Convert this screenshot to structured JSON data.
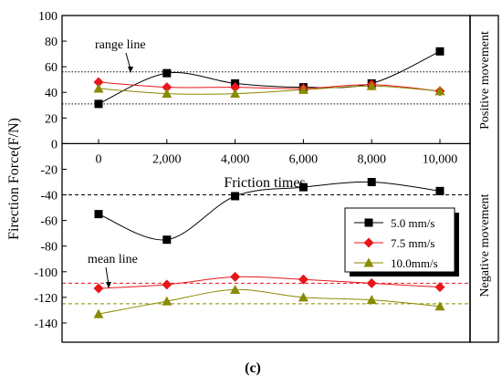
{
  "chart_data": {
    "type": "line",
    "panel_label": "(c)",
    "xlabel": "Friction times",
    "ylabel": "Firection Force(F/N)",
    "x": [
      0,
      2000,
      4000,
      6000,
      8000,
      10000
    ],
    "x_tick_labels": [
      "0",
      "2,000",
      "4,000",
      "6,000",
      "8,000",
      "10,000"
    ],
    "ylim": [
      -155,
      100
    ],
    "y_tick_values": [
      100,
      80,
      60,
      40,
      20,
      0,
      -20,
      -40,
      -60,
      -80,
      -100,
      -120,
      -140
    ],
    "y_tick_labels": [
      "100",
      "80",
      "60",
      "40",
      "20",
      "0",
      "-20",
      "-40",
      "-60",
      "-80",
      "-100",
      "-120",
      "-140"
    ],
    "panel_divider_y": 0,
    "panel_labels": {
      "top": "Positive movement",
      "bottom": "Negative movement"
    },
    "series": [
      {
        "name": "5.0 mm/s",
        "color": "#000000",
        "marker": "square",
        "positive": [
          31,
          55,
          47,
          44,
          47,
          72
        ],
        "negative": [
          -55,
          -75,
          -41,
          -34,
          -30,
          -37
        ]
      },
      {
        "name": "7.5 mm/s",
        "color": "#e8161b",
        "marker": "diamond",
        "positive": [
          48,
          44,
          44,
          43,
          46,
          41
        ],
        "negative": [
          -113,
          -110,
          -104,
          -106,
          -109,
          -112
        ]
      },
      {
        "name": "10.0mm/s",
        "color": "#8a8a00",
        "marker": "triangle",
        "positive": [
          43,
          39,
          39,
          42,
          45,
          41
        ],
        "negative": [
          -133,
          -123,
          -114,
          -120,
          -122,
          -127
        ]
      }
    ],
    "reference_lines": [
      {
        "y": 56,
        "color": "#000000",
        "style": "dotted"
      },
      {
        "y": 31,
        "color": "#000000",
        "style": "dotted"
      },
      {
        "y": -40,
        "color": "#000000",
        "style": "dashed"
      },
      {
        "y": -109,
        "color": "#e8161b",
        "style": "dashed"
      },
      {
        "y": -125,
        "color": "#8a8a00",
        "style": "dashed"
      }
    ],
    "annotations": [
      "range line",
      "mean line"
    ],
    "legend_position": "right"
  }
}
